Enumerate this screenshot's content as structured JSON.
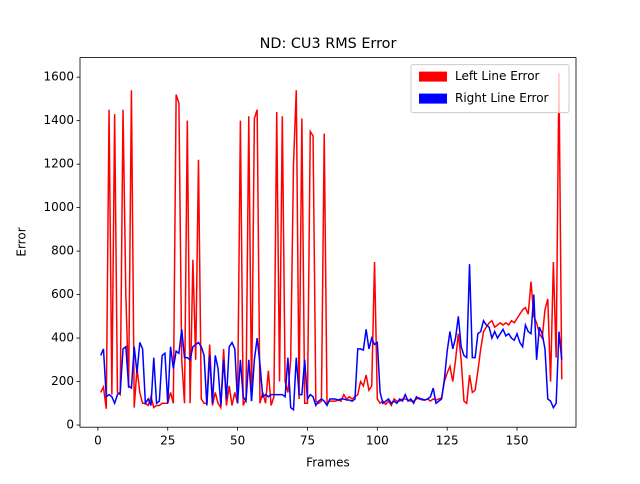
{
  "chart_data": {
    "type": "line",
    "title": "ND: CU3 RMS Error",
    "xlabel": "Frames",
    "ylabel": "Error",
    "x": [
      1,
      2,
      3,
      4,
      5,
      6,
      7,
      8,
      9,
      10,
      11,
      12,
      13,
      14,
      15,
      16,
      17,
      18,
      19,
      20,
      21,
      22,
      23,
      24,
      25,
      26,
      27,
      28,
      29,
      30,
      31,
      32,
      33,
      34,
      35,
      36,
      37,
      38,
      39,
      40,
      41,
      42,
      43,
      44,
      45,
      46,
      47,
      48,
      49,
      50,
      51,
      52,
      53,
      54,
      55,
      56,
      57,
      58,
      59,
      60,
      61,
      62,
      63,
      64,
      65,
      66,
      67,
      68,
      69,
      70,
      71,
      72,
      73,
      74,
      75,
      76,
      77,
      78,
      79,
      80,
      81,
      82,
      83,
      84,
      85,
      86,
      87,
      88,
      89,
      90,
      91,
      92,
      93,
      94,
      95,
      96,
      97,
      98,
      99,
      100,
      101,
      102,
      103,
      104,
      105,
      106,
      107,
      108,
      109,
      110,
      111,
      112,
      113,
      114,
      115,
      116,
      117,
      118,
      119,
      120,
      121,
      122,
      123,
      124,
      125,
      126,
      127,
      128,
      129,
      130,
      131,
      132,
      133,
      134,
      135,
      136,
      137,
      138,
      139,
      140,
      141,
      142,
      143,
      144,
      145,
      146,
      147,
      148,
      149,
      150,
      151,
      152,
      153,
      154,
      155,
      156,
      157,
      158,
      159,
      160,
      161,
      162,
      163,
      164,
      165,
      166
    ],
    "series": [
      {
        "name": "Left Line Error",
        "color": "#ff0000",
        "values": [
          150,
          175,
          75,
          1450,
          140,
          1430,
          150,
          140,
          1450,
          600,
          170,
          1540,
          80,
          260,
          150,
          100,
          100,
          90,
          130,
          80,
          90,
          90,
          100,
          100,
          100,
          150,
          100,
          1520,
          1480,
          300,
          100,
          1400,
          100,
          760,
          300,
          1220,
          120,
          100,
          100,
          370,
          90,
          150,
          100,
          80,
          350,
          90,
          180,
          90,
          150,
          100,
          1400,
          90,
          120,
          1420,
          110,
          1410,
          1450,
          100,
          150,
          100,
          250,
          90,
          130,
          1440,
          200,
          1420,
          200,
          150,
          300,
          1200,
          1540,
          120,
          1410,
          100,
          100,
          1350,
          1330,
          110,
          100,
          110,
          1340,
          100,
          110,
          110,
          110,
          115,
          110,
          140,
          120,
          130,
          120,
          130,
          140,
          200,
          180,
          230,
          160,
          180,
          750,
          120,
          100,
          110,
          95,
          110,
          90,
          120,
          110,
          110,
          120,
          120,
          115,
          110,
          110,
          120,
          125,
          115,
          115,
          120,
          110,
          120,
          115,
          120,
          125,
          200,
          240,
          270,
          200,
          300,
          420,
          300,
          110,
          100,
          230,
          150,
          160,
          250,
          350,
          430,
          450,
          470,
          480,
          450,
          460,
          470,
          460,
          470,
          460,
          480,
          470,
          490,
          510,
          530,
          540,
          510,
          660,
          500,
          470,
          420,
          400,
          530,
          580,
          200,
          750,
          310,
          1620,
          210
        ]
      },
      {
        "name": "Right Line Error",
        "color": "#0000ff",
        "values": [
          320,
          350,
          130,
          140,
          130,
          100,
          140,
          150,
          350,
          360,
          180,
          170,
          360,
          240,
          380,
          350,
          100,
          120,
          90,
          310,
          100,
          110,
          320,
          330,
          100,
          360,
          260,
          340,
          330,
          440,
          310,
          310,
          300,
          360,
          370,
          380,
          360,
          320,
          90,
          320,
          100,
          320,
          260,
          90,
          300,
          120,
          360,
          380,
          350,
          100,
          300,
          130,
          110,
          300,
          110,
          300,
          400,
          280,
          130,
          140,
          130,
          140,
          140,
          140,
          140,
          140,
          130,
          310,
          80,
          70,
          310,
          140,
          140,
          300,
          120,
          140,
          130,
          90,
          110,
          120,
          110,
          90,
          120,
          120,
          120,
          115,
          120,
          120,
          115,
          115,
          110,
          120,
          350,
          350,
          345,
          440,
          350,
          400,
          370,
          380,
          150,
          100,
          110,
          120,
          100,
          110,
          100,
          120,
          110,
          140,
          110,
          120,
          100,
          130,
          120,
          120,
          115,
          120,
          130,
          170,
          100,
          110,
          120,
          210,
          340,
          430,
          350,
          400,
          500,
          360,
          320,
          310,
          740,
          310,
          310,
          420,
          430,
          480,
          460,
          450,
          400,
          430,
          400,
          420,
          440,
          410,
          420,
          400,
          390,
          420,
          380,
          360,
          460,
          430,
          420,
          600,
          300,
          450,
          420,
          350,
          120,
          110,
          80,
          100,
          430,
          300
        ]
      }
    ],
    "xlim": [
      -6.4,
      171.1
    ],
    "ylim": [
      -10,
      1690
    ],
    "xticks": [
      0,
      25,
      50,
      75,
      100,
      125,
      150
    ],
    "yticks": [
      0,
      200,
      400,
      600,
      800,
      1000,
      1200,
      1400,
      1600
    ],
    "legend": "upper right"
  }
}
